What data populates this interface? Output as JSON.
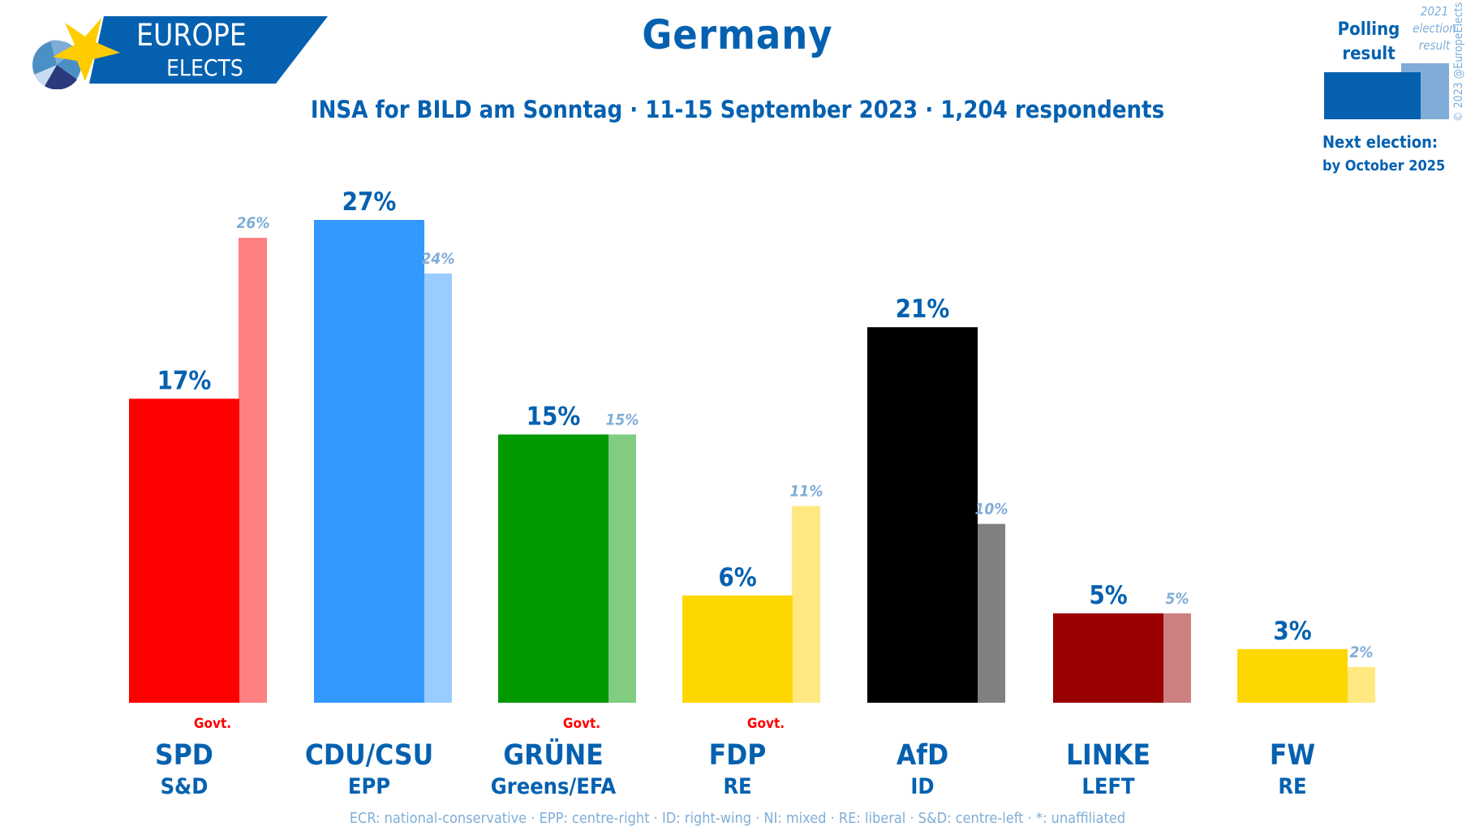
{
  "header": {
    "logo_line1": "EUROPE",
    "logo_line2": "ELECTS",
    "title": "Germany",
    "subtitle": "INSA for BILD am Sonntag · 11-15 September 2023 · 1,204 respondents"
  },
  "legend": {
    "polling_label_1": "Polling",
    "polling_label_2": "result",
    "election_label_1": "2021",
    "election_label_2": "election",
    "election_label_3": "result",
    "next_election_label": "Next election:",
    "next_election_value": "by October 2025",
    "copyright": "© 2023 @EuropeElects",
    "polling_color": "#0561b0",
    "election_color": "#7fadd7"
  },
  "footer": {
    "group_key": "ECR: national-conservative · EPP: centre-right · ID: right-wing · NI: mixed · RE: liberal · S&D: centre-left · *: unaffiliated"
  },
  "chart_data": {
    "type": "bar",
    "title": "Germany",
    "subtitle": "INSA for BILD am Sonntag · 11-15 September 2023 · 1,204 respondents",
    "xlabel": "",
    "ylabel": "",
    "ylim": [
      0,
      27
    ],
    "grid": false,
    "legend_position": "top-right",
    "categories": [
      "SPD",
      "CDU/CSU",
      "GRÜNE",
      "FDP",
      "AfD",
      "LINKE",
      "FW"
    ],
    "groups": [
      "S&D",
      "EPP",
      "Greens/EFA",
      "RE",
      "ID",
      "LEFT",
      "RE"
    ],
    "government": [
      true,
      false,
      true,
      true,
      false,
      false,
      false
    ],
    "govt_label": "Govt.",
    "series": [
      {
        "name": "Polling result",
        "values": [
          17,
          27,
          15,
          6,
          21,
          5,
          3
        ],
        "labels": [
          "17%",
          "27%",
          "15%",
          "6%",
          "21%",
          "5%",
          "3%"
        ],
        "colors": [
          "#ff0000",
          "#3399ff",
          "#009900",
          "#ffd700",
          "#000000",
          "#990000",
          "#ffd700"
        ]
      },
      {
        "name": "2021 election result",
        "values": [
          26,
          24,
          15,
          11,
          10,
          5,
          2
        ],
        "labels": [
          "26%",
          "24%",
          "15%",
          "11%",
          "10%",
          "5%",
          "2%"
        ],
        "colors": [
          "#ff8080",
          "#99ccff",
          "#80cc80",
          "#ffe980",
          "#808080",
          "#cc8080",
          "#ffe980"
        ]
      }
    ]
  }
}
